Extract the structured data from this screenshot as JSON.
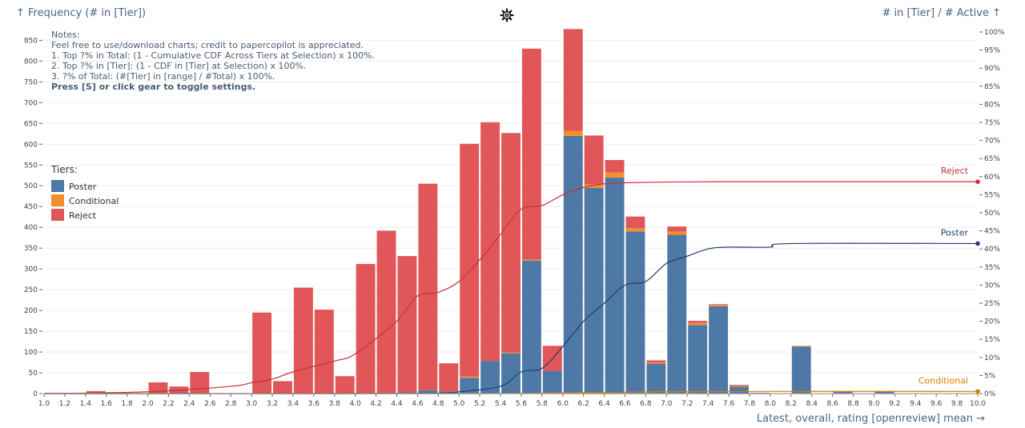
{
  "chart_data": {
    "type": "bar",
    "stacked": true,
    "y_axis_title": "↑ Frequency (# in [Tier])",
    "y2_axis_title": "# in [Tier] / # Active ↑",
    "x_axis_title": "Latest, overall, rating [openreview] mean →",
    "x_ticks": [
      "1.0",
      "1.2",
      "1.4",
      "1.6",
      "1.8",
      "2.0",
      "2.2",
      "2.4",
      "2.6",
      "2.8",
      "3.0",
      "3.2",
      "3.4",
      "3.6",
      "3.8",
      "4.0",
      "4.2",
      "4.4",
      "4.6",
      "4.8",
      "5.0",
      "5.2",
      "5.4",
      "5.6",
      "5.8",
      "6.0",
      "6.2",
      "6.4",
      "6.6",
      "6.8",
      "7.0",
      "7.2",
      "7.4",
      "7.6",
      "7.8",
      "8.0",
      "8.2",
      "8.4",
      "8.6",
      "8.8",
      "9.0",
      "9.2",
      "9.4",
      "9.6",
      "9.8",
      "10.0"
    ],
    "y_ticks": [
      0,
      50,
      100,
      150,
      200,
      250,
      300,
      350,
      400,
      450,
      500,
      550,
      600,
      650,
      700,
      750,
      800,
      850
    ],
    "ylim": [
      0,
      870
    ],
    "y2_ticks": [
      "0%",
      "5%",
      "10%",
      "15%",
      "20%",
      "25%",
      "30%",
      "35%",
      "40%",
      "45%",
      "50%",
      "55%",
      "60%",
      "65%",
      "70%",
      "75%",
      "80%",
      "85%",
      "90%",
      "95%",
      "100%"
    ],
    "y2lim": [
      0,
      100
    ],
    "x": [
      1.0,
      1.2,
      1.4,
      1.6,
      1.8,
      2.0,
      2.2,
      2.4,
      2.6,
      2.8,
      3.0,
      3.2,
      3.4,
      3.6,
      3.8,
      4.0,
      4.2,
      4.4,
      4.6,
      4.8,
      5.0,
      5.2,
      5.4,
      5.6,
      5.8,
      6.0,
      6.2,
      6.4,
      6.6,
      6.8,
      7.0,
      7.2,
      7.4,
      7.6,
      7.8,
      8.0,
      8.2,
      8.4,
      8.6,
      8.8,
      9.0,
      9.2,
      9.4,
      9.6,
      9.8
    ],
    "series": [
      {
        "name": "Poster",
        "color": "#4e79a7",
        "values": [
          0,
          0,
          0,
          0,
          0,
          0,
          0,
          0,
          0,
          0,
          0,
          0,
          0,
          0,
          0,
          0,
          2,
          3,
          8,
          5,
          38,
          78,
          97,
          320,
          55,
          620,
          495,
          520,
          390,
          72,
          382,
          165,
          210,
          17,
          2,
          0,
          113,
          0,
          5,
          0,
          5,
          0,
          0,
          0,
          0
        ]
      },
      {
        "name": "Conditional",
        "color": "#f28e2b",
        "values": [
          0,
          0,
          0,
          0,
          0,
          0,
          0,
          0,
          0,
          0,
          0,
          0,
          0,
          0,
          0,
          0,
          0,
          0,
          0,
          0,
          3,
          0,
          2,
          2,
          0,
          12,
          8,
          12,
          8,
          3,
          8,
          5,
          3,
          2,
          0,
          0,
          2,
          0,
          0,
          0,
          0,
          0,
          0,
          0,
          0
        ]
      },
      {
        "name": "Reject",
        "color": "#e15759",
        "values": [
          2,
          0,
          6,
          2,
          0,
          27,
          17,
          52,
          0,
          0,
          195,
          30,
          255,
          202,
          42,
          312,
          390,
          328,
          497,
          68,
          560,
          575,
          528,
          508,
          60,
          245,
          118,
          30,
          28,
          5,
          12,
          5,
          2,
          2,
          0,
          0,
          0,
          0,
          0,
          0,
          0,
          0,
          0,
          0,
          0
        ]
      }
    ],
    "lines": [
      {
        "name": "Reject",
        "color": "#c8303a",
        "x": [
          1.0,
          2.0,
          2.8,
          3.0,
          3.2,
          3.4,
          3.8,
          4.0,
          4.4,
          4.6,
          4.8,
          5.0,
          5.2,
          5.4,
          5.6,
          5.8,
          6.0,
          6.2,
          6.4,
          6.6,
          7.0,
          7.6,
          8.0,
          10.0
        ],
        "y": [
          0,
          0.5,
          2,
          3,
          4,
          6,
          9,
          11,
          20,
          27,
          28,
          31,
          37,
          44,
          51,
          52,
          55,
          57,
          58,
          58.3,
          58.5,
          58.6,
          58.6,
          58.6
        ]
      },
      {
        "name": "Poster",
        "color": "#1f3f6a",
        "x": [
          1.0,
          4.0,
          4.8,
          5.0,
          5.4,
          5.6,
          5.8,
          6.0,
          6.2,
          6.4,
          6.6,
          6.8,
          7.0,
          7.2,
          7.4,
          7.6,
          8.0,
          8.2,
          10.0
        ],
        "y": [
          0,
          0,
          0.1,
          0.5,
          2,
          6,
          7,
          13,
          20,
          25,
          30,
          31,
          36,
          38,
          40,
          40.5,
          40.5,
          41.5,
          41.5
        ]
      },
      {
        "name": "Conditional",
        "color": "#e07b00",
        "x": [
          1.0,
          5.0,
          6.0,
          7.0,
          8.0,
          10.0
        ],
        "y": [
          0,
          0,
          0.2,
          0.5,
          0.6,
          0.6
        ]
      }
    ],
    "legend_title": "Tiers:",
    "legend_entries": [
      "Poster",
      "Conditional",
      "Reject"
    ],
    "legend_position": "left"
  },
  "notes": {
    "line0": "Notes:",
    "line1": "Feel free to use/download charts; credit to papercopilot is appreciated.",
    "line2": "1. Top ?% in Total: (1 - Cumulative CDF Across Tiers at Selection) x 100%.",
    "line3": "2. Top ?% in [Tier]: (1 - CDF in [Tier] at Selection) x 100%.",
    "line4": "3. ?% of Total: (#[Tier] in [range] / #Total) x 100%.",
    "line5": "Press [S] or click gear to toggle settings."
  },
  "icons": {
    "settings": "gear-icon"
  }
}
